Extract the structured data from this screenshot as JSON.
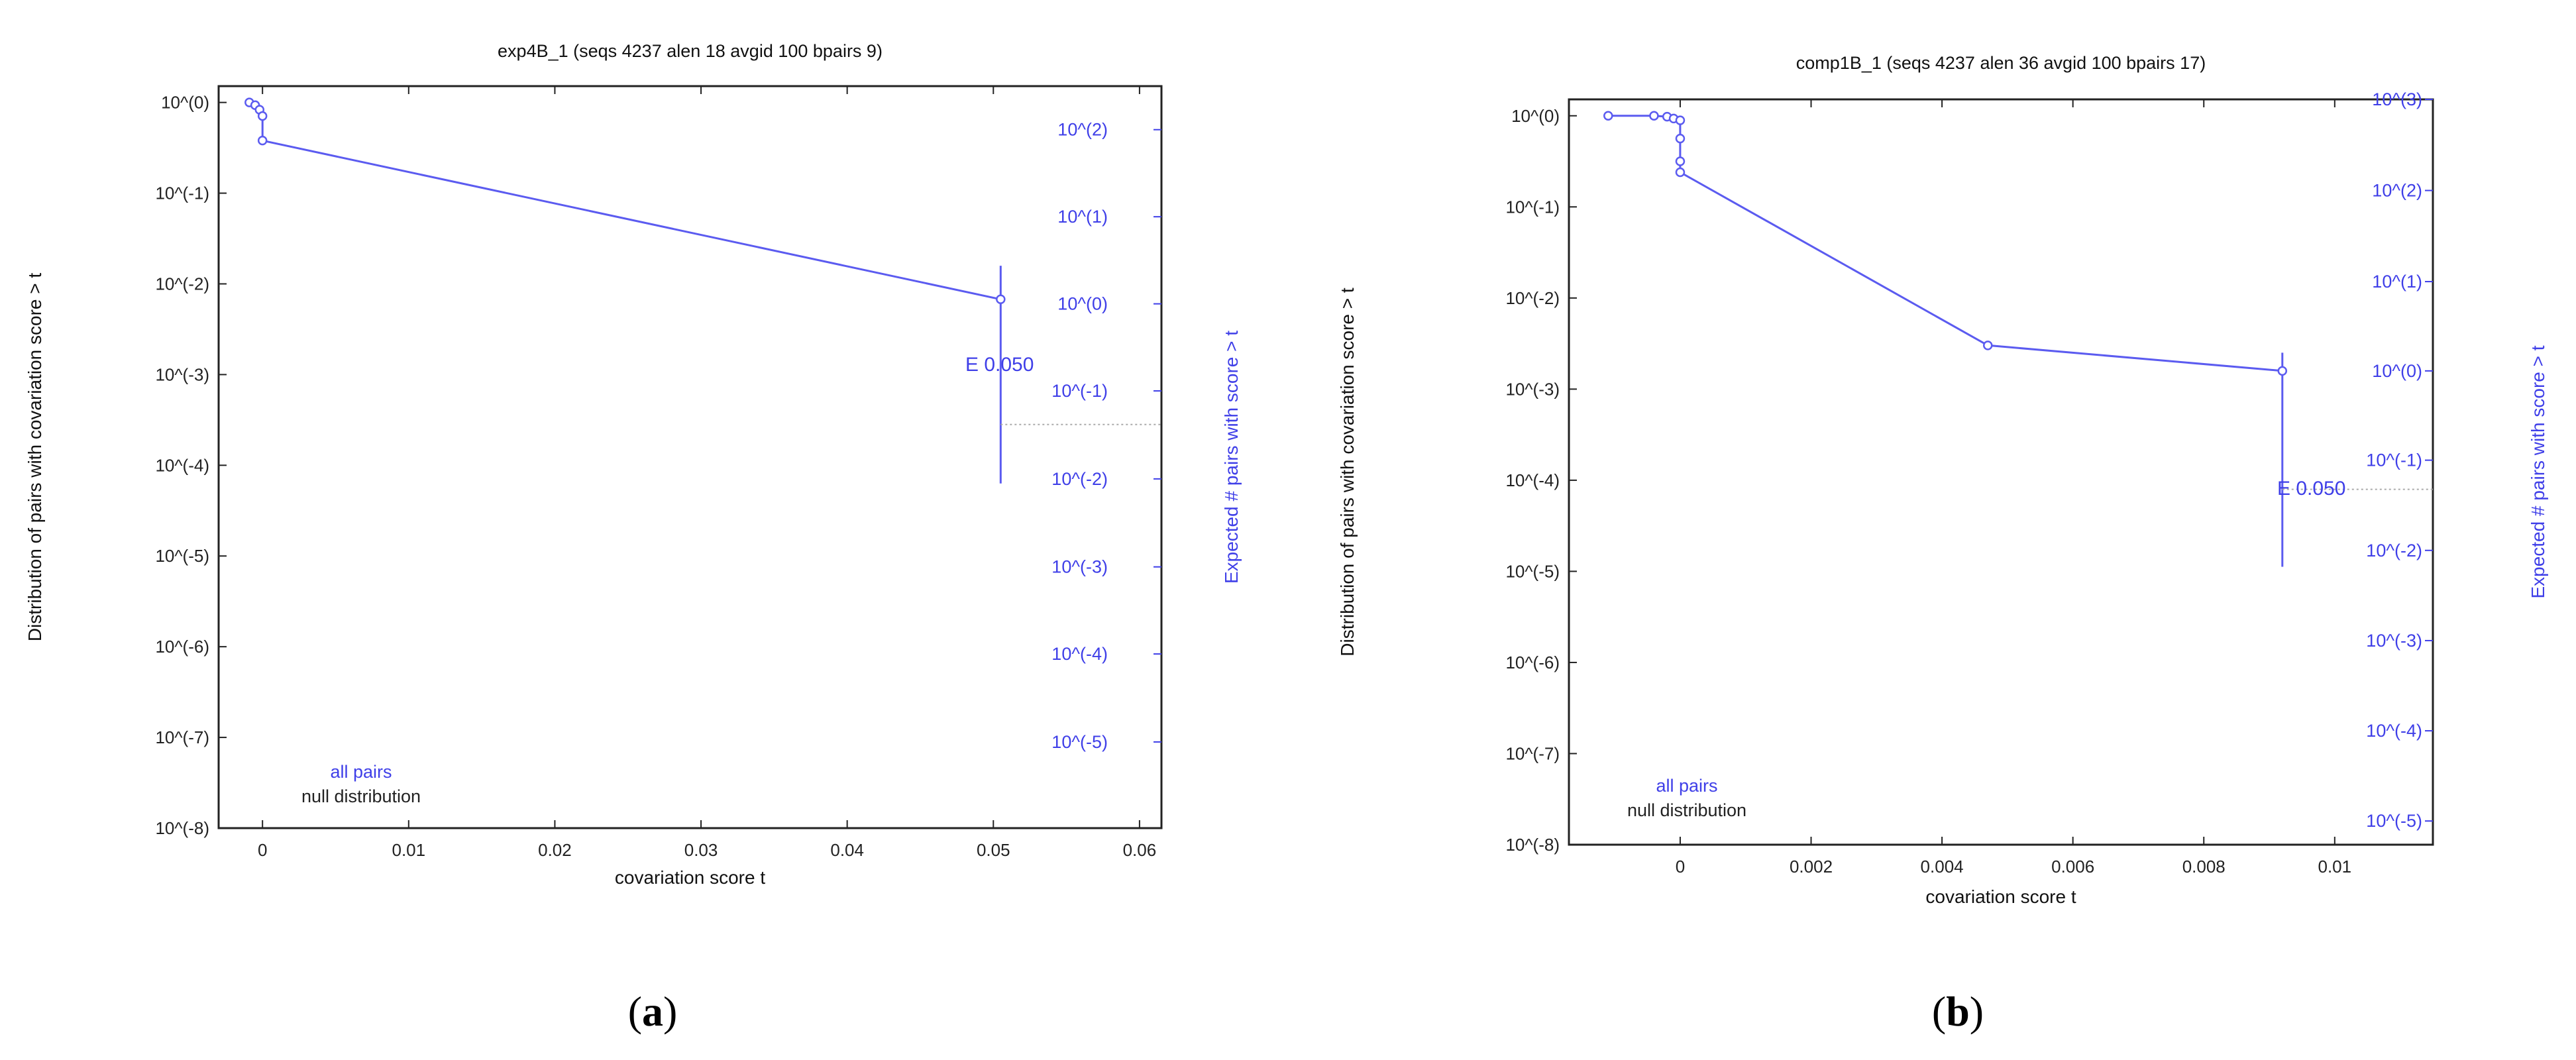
{
  "chart_data": [
    {
      "type": "line",
      "panel_caption": "(a)",
      "caption_bold": "a",
      "title": "exp4B_1 (seqs 4237 alen 18 avgid 100 bpairs 9)",
      "xlabel": "covariation score t",
      "ylabel": "Distribution of pairs with covariation score > t",
      "y2label": "Expected # pairs with score > t",
      "xlim": [
        -0.003,
        0.0615
      ],
      "xticks": [
        0,
        0.01,
        0.02,
        0.03,
        0.04,
        0.05,
        0.06
      ],
      "xtick_labels": [
        "0",
        "0.01",
        "0.02",
        "0.03",
        "0.04",
        "0.05",
        "0.06"
      ],
      "yscale": "log",
      "ylim_exp": [
        -8,
        0.18
      ],
      "yticks_exp": [
        0,
        -1,
        -2,
        -3,
        -4,
        -5,
        -6,
        -7,
        -8
      ],
      "ytick_labels": [
        "10^{0}",
        "10^{-1}",
        "10^{-2}",
        "10^{-3}",
        "10^{-4}",
        "10^{-5}",
        "10^{-6}",
        "10^{-7}",
        "10^{-8}"
      ],
      "y2_ticks_exp": [
        -0.3,
        -1.26,
        -2.22,
        -3.18,
        -4.15,
        -5.12,
        -6.08,
        -7.05
      ],
      "y2tick_labels": [
        "10^{2}",
        "10^{1}",
        "10^{0}",
        "10^{-1}",
        "10^{-2}",
        "10^{-3}",
        "10^{-4}",
        "10^{-5}"
      ],
      "series": [
        {
          "name": "all pairs",
          "color": "#5b5bf0",
          "x": [
            -0.0009,
            -0.0005,
            -0.0002,
            0.0,
            0.0,
            0.0505
          ],
          "y_exp": [
            0.0,
            -0.03,
            -0.08,
            -0.15,
            -0.42,
            -2.17
          ]
        }
      ],
      "null_series_name": "null distribution",
      "threshold": {
        "label": "E 0.050",
        "x": 0.0505,
        "bar_from_exp": -1.8,
        "bar_to_exp": -4.2,
        "dotted_y_exp": -3.55
      }
    },
    {
      "type": "line",
      "panel_caption": "(b)",
      "caption_bold": "b",
      "title": "comp1B_1 (seqs 4237 alen 36 avgid 100 bpairs 17)",
      "xlabel": "covariation score t",
      "ylabel": "Distribution of pairs with covariation score > t",
      "y2label": "Expected # pairs with score > t",
      "xlim": [
        -0.0017,
        0.0115
      ],
      "xticks": [
        0,
        0.002,
        0.004,
        0.006,
        0.008,
        0.01
      ],
      "xtick_labels": [
        "0",
        "0.002",
        "0.004",
        "0.006",
        "0.008",
        "0.01"
      ],
      "yscale": "log",
      "ylim_exp": [
        -8,
        0.18
      ],
      "yticks_exp": [
        0,
        -1,
        -2,
        -3,
        -4,
        -5,
        -6,
        -7,
        -8
      ],
      "ytick_labels": [
        "10^{0}",
        "10^{-1}",
        "10^{-2}",
        "10^{-3}",
        "10^{-4}",
        "10^{-5}",
        "10^{-6}",
        "10^{-7}",
        "10^{-8}"
      ],
      "y2_ticks_exp": [
        0.18,
        -0.82,
        -1.82,
        -2.8,
        -3.78,
        -4.77,
        -5.76,
        -6.75,
        -7.74
      ],
      "y2tick_labels": [
        "10^{3}",
        "10^{2}",
        "10^{1}",
        "10^{0}",
        "10^{-1}",
        "10^{-2}",
        "10^{-3}",
        "10^{-4}",
        "10^{-5}"
      ],
      "series": [
        {
          "name": "all pairs",
          "color": "#5b5bf0",
          "x": [
            -0.0011,
            -0.0004,
            -0.0002,
            -0.0001,
            0.0,
            0.0,
            0.0,
            0.0,
            0.0047,
            0.0092
          ],
          "y_exp": [
            0.0,
            0.0,
            -0.01,
            -0.03,
            -0.05,
            -0.25,
            -0.5,
            -0.62,
            -2.52,
            -2.8
          ]
        }
      ],
      "null_series_name": "null distribution",
      "threshold": {
        "label": "E 0.050",
        "x": 0.0092,
        "bar_from_exp": -2.6,
        "bar_to_exp": -4.95,
        "dotted_y_exp": -4.1
      }
    }
  ]
}
